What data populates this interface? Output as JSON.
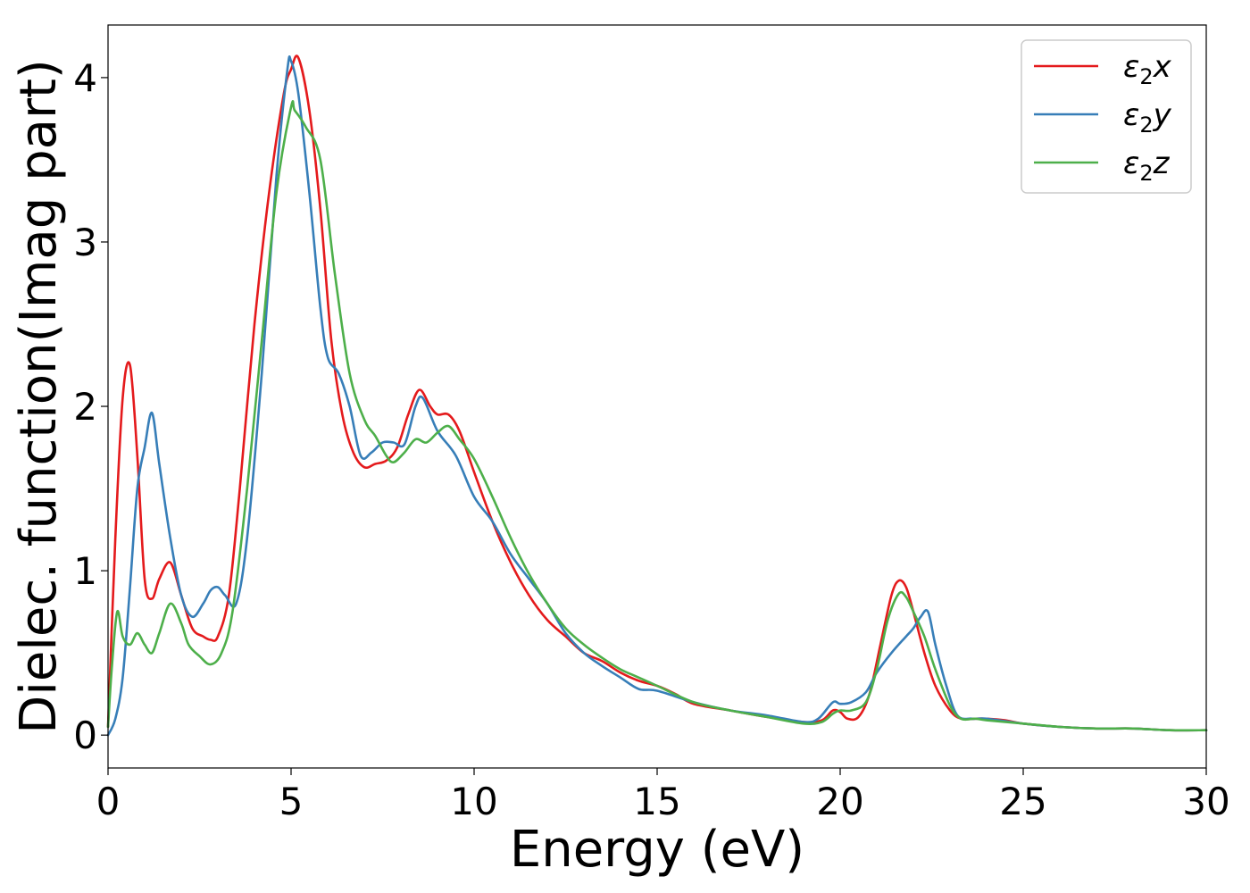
{
  "chart_data": {
    "type": "line",
    "xlabel": "Energy (eV)",
    "ylabel": "Dielec. function(Imag part)",
    "xlim": [
      0,
      30
    ],
    "ylim": [
      -0.2,
      4.32
    ],
    "xticks": [
      0,
      5,
      10,
      15,
      20,
      25,
      30
    ],
    "yticks": [
      0,
      1,
      2,
      3,
      4
    ],
    "legend": "top-right",
    "grid": false,
    "series": [
      {
        "name": "ε₂x",
        "legend_base": "ε",
        "legend_sub": "2",
        "legend_suffix": "x",
        "color": "#e41a1c",
        "x": [
          0,
          0.2,
          0.4,
          0.6,
          0.8,
          1.0,
          1.2,
          1.4,
          1.7,
          2.0,
          2.3,
          2.6,
          2.8,
          3.0,
          3.3,
          3.6,
          4.0,
          4.4,
          4.8,
          5.0,
          5.2,
          5.5,
          5.8,
          6.1,
          6.4,
          6.7,
          7.0,
          7.3,
          7.6,
          7.9,
          8.2,
          8.5,
          8.8,
          9.0,
          9.3,
          9.6,
          10.0,
          10.5,
          11.0,
          11.5,
          12.0,
          12.5,
          13.0,
          13.5,
          14.0,
          14.5,
          15.0,
          15.5,
          16.0,
          17.0,
          18.0,
          19.0,
          19.5,
          19.8,
          20.0,
          20.2,
          20.5,
          20.8,
          21.1,
          21.4,
          21.6,
          21.8,
          22.0,
          22.3,
          22.6,
          23.0,
          23.3,
          23.7,
          24.0,
          24.5,
          25.0,
          26.0,
          27.0,
          28.0,
          29.0,
          30.0
        ],
        "values": [
          0.05,
          1.2,
          2.05,
          2.25,
          1.7,
          0.95,
          0.83,
          0.95,
          1.05,
          0.85,
          0.65,
          0.6,
          0.58,
          0.6,
          0.85,
          1.5,
          2.5,
          3.3,
          3.9,
          4.05,
          4.12,
          3.8,
          3.2,
          2.4,
          1.95,
          1.72,
          1.63,
          1.65,
          1.67,
          1.75,
          1.95,
          2.1,
          2.0,
          1.95,
          1.95,
          1.85,
          1.6,
          1.3,
          1.05,
          0.85,
          0.7,
          0.6,
          0.5,
          0.45,
          0.38,
          0.33,
          0.3,
          0.25,
          0.19,
          0.15,
          0.11,
          0.08,
          0.09,
          0.15,
          0.14,
          0.1,
          0.11,
          0.25,
          0.55,
          0.85,
          0.94,
          0.9,
          0.75,
          0.5,
          0.3,
          0.15,
          0.1,
          0.1,
          0.1,
          0.09,
          0.07,
          0.05,
          0.04,
          0.04,
          0.03,
          0.03
        ]
      },
      {
        "name": "ε₂y",
        "legend_base": "ε",
        "legend_sub": "2",
        "legend_suffix": "y",
        "color": "#377eb8",
        "x": [
          0,
          0.2,
          0.4,
          0.6,
          0.8,
          1.0,
          1.2,
          1.4,
          1.7,
          2.0,
          2.3,
          2.6,
          2.8,
          3.0,
          3.2,
          3.5,
          3.8,
          4.2,
          4.6,
          4.9,
          5.0,
          5.2,
          5.5,
          5.8,
          6.0,
          6.3,
          6.6,
          6.9,
          7.2,
          7.5,
          7.8,
          8.1,
          8.4,
          8.6,
          9.0,
          9.5,
          10.0,
          10.5,
          11.0,
          11.5,
          12.0,
          12.5,
          13.0,
          13.5,
          14.0,
          14.5,
          15.0,
          16.0,
          17.0,
          18.0,
          19.0,
          19.4,
          19.8,
          20.0,
          20.3,
          20.7,
          21.0,
          21.4,
          21.8,
          22.0,
          22.2,
          22.4,
          22.6,
          22.9,
          23.2,
          23.6,
          24.0,
          25.0,
          26.0,
          27.0,
          28.0,
          29.0,
          30.0
        ],
        "values": [
          0.0,
          0.1,
          0.35,
          0.9,
          1.5,
          1.75,
          1.96,
          1.65,
          1.2,
          0.85,
          0.72,
          0.8,
          0.88,
          0.9,
          0.85,
          0.8,
          1.2,
          2.2,
          3.4,
          4.05,
          4.1,
          3.9,
          3.3,
          2.6,
          2.3,
          2.2,
          2.0,
          1.7,
          1.72,
          1.78,
          1.78,
          1.77,
          2.0,
          2.05,
          1.85,
          1.7,
          1.45,
          1.3,
          1.1,
          0.95,
          0.8,
          0.62,
          0.5,
          0.42,
          0.35,
          0.28,
          0.27,
          0.2,
          0.15,
          0.12,
          0.08,
          0.1,
          0.2,
          0.19,
          0.2,
          0.26,
          0.38,
          0.5,
          0.6,
          0.65,
          0.72,
          0.75,
          0.55,
          0.3,
          0.12,
          0.1,
          0.1,
          0.07,
          0.05,
          0.04,
          0.04,
          0.03,
          0.03
        ]
      },
      {
        "name": "ε₂z",
        "legend_base": "ε",
        "legend_sub": "2",
        "legend_suffix": "z",
        "color": "#4daf4a",
        "x": [
          0,
          0.1,
          0.25,
          0.4,
          0.6,
          0.8,
          1.0,
          1.2,
          1.4,
          1.7,
          2.0,
          2.2,
          2.5,
          2.8,
          3.1,
          3.4,
          3.8,
          4.2,
          4.6,
          5.0,
          5.1,
          5.4,
          5.8,
          6.2,
          6.6,
          7.0,
          7.3,
          7.6,
          7.8,
          8.1,
          8.4,
          8.7,
          9.0,
          9.3,
          9.6,
          10.0,
          10.5,
          11.0,
          11.5,
          12.0,
          12.5,
          13.0,
          13.5,
          14.0,
          14.5,
          15.0,
          16.0,
          17.0,
          18.0,
          19.0,
          19.5,
          19.8,
          20.0,
          20.3,
          20.7,
          21.0,
          21.3,
          21.6,
          21.8,
          22.0,
          22.3,
          22.6,
          23.0,
          23.3,
          23.7,
          24.0,
          25.0,
          26.0,
          27.0,
          28.0,
          29.0,
          30.0
        ],
        "values": [
          0.05,
          0.4,
          0.75,
          0.6,
          0.55,
          0.62,
          0.55,
          0.5,
          0.62,
          0.8,
          0.68,
          0.55,
          0.48,
          0.43,
          0.5,
          0.75,
          1.5,
          2.4,
          3.3,
          3.82,
          3.8,
          3.7,
          3.5,
          2.8,
          2.2,
          1.92,
          1.82,
          1.7,
          1.66,
          1.72,
          1.8,
          1.78,
          1.84,
          1.88,
          1.8,
          1.68,
          1.45,
          1.2,
          0.98,
          0.8,
          0.65,
          0.55,
          0.47,
          0.4,
          0.35,
          0.3,
          0.2,
          0.15,
          0.11,
          0.07,
          0.08,
          0.13,
          0.15,
          0.15,
          0.2,
          0.4,
          0.7,
          0.86,
          0.84,
          0.75,
          0.6,
          0.4,
          0.18,
          0.1,
          0.1,
          0.09,
          0.07,
          0.05,
          0.04,
          0.04,
          0.03,
          0.03
        ]
      }
    ]
  }
}
